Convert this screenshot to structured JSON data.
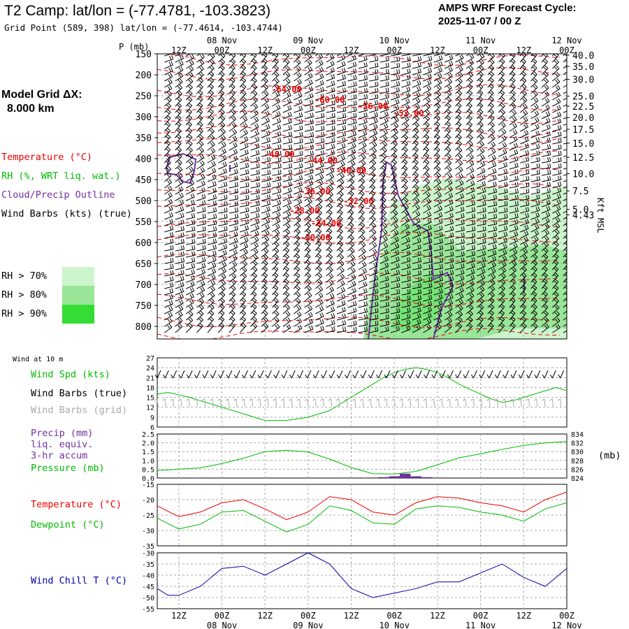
{
  "header": {
    "title": "T2 Camp:  lat/lon = (-77.4781, -103.3823)",
    "grid_point": "Grid Point (589, 398) lat/lon = (-77.4614, -103.4744)",
    "cycle_line1": "AMPS WRF Forecast Cycle:",
    "cycle_line2": "2025-11-07 / 00  Z"
  },
  "legend": {
    "model_grid_line1": "Model Grid ΔX:",
    "model_grid_line2": "8.000 km",
    "temperature": "Temperature (°C)",
    "rh": "RH (%, WRT liq. wat.)",
    "cloud": "Cloud/Precip Outline",
    "wind_barbs": "Wind Barbs (kts) (true)",
    "rh70": "RH > 70%",
    "rh80": "RH > 80%",
    "rh90": "RH > 90%",
    "wind_at_10m": "Wind at 10 m",
    "wind_spd": "Wind Spd (kts)",
    "wind_barbs_true": "Wind Barbs (true)",
    "wind_barbs_grid": "Wind Barbs (grid)",
    "precip_1": "Precip (mm)",
    "precip_2": "liq. equiv.",
    "precip_3": "3-hr accum",
    "pressure": "Pressure (mb)",
    "mb_unit": "(mb)",
    "temperature2": "Temperature (°C)",
    "dewpoint": "Dewpoint (°C)",
    "wind_chill": "Wind Chill T (°C)",
    "kft_msl": "Kft MSL",
    "p_mb": "P (mb)"
  },
  "colors": {
    "temp": "#ee0000",
    "green": "#00bb00",
    "purple": "#7030a0",
    "blue": "#0000aa",
    "rh70": "#cdf5cd",
    "rh80": "#99e699",
    "rh90": "#33dd33",
    "grid": "#aaaaaa",
    "grey_barb": "#aaaaaa"
  },
  "time_axis": {
    "top_labels": [
      "12Z",
      "00Z",
      "12Z",
      "00Z",
      "12Z",
      "00Z",
      "12Z",
      "00Z",
      "12Z",
      "00Z"
    ],
    "date_labels": [
      "08 Nov",
      "09 Nov",
      "10 Nov",
      "11 Nov",
      "12 Nov"
    ],
    "bottom_labels": [
      "12Z",
      "00Z",
      "12Z",
      "00Z",
      "12Z",
      "00Z",
      "12Z",
      "00Z",
      "12Z",
      "00Z"
    ],
    "hours_start": 6,
    "hours_end": 120
  },
  "chart_data": [
    {
      "type": "contour",
      "name": "time-height cross section",
      "y_axis_left": {
        "label": "P (mb)",
        "ticks": [
          150,
          200,
          250,
          300,
          350,
          400,
          450,
          500,
          550,
          600,
          650,
          700,
          750,
          800
        ],
        "range": [
          150,
          830
        ]
      },
      "y_axis_right": {
        "label": "Kft MSL",
        "ticks": [
          "40.0",
          "35.0",
          "30.0",
          "25.0",
          "22.5",
          "20.0",
          "17.5",
          "15.0",
          "12.5",
          "10.0",
          "7.5",
          "5.0",
          "4.43"
        ],
        "tick_pressures": [
          153,
          180,
          211,
          251,
          275,
          302,
          330,
          363,
          397,
          436,
          477,
          521,
          534
        ]
      },
      "temperature_labels": [
        {
          "text": "-64.00",
          "t": 42,
          "p": 235
        },
        {
          "text": "-60.00",
          "t": 54,
          "p": 260
        },
        {
          "text": "-56.00",
          "t": 66,
          "p": 275
        },
        {
          "text": "-52.00",
          "t": 76,
          "p": 292
        },
        {
          "text": "-48.00",
          "t": 40,
          "p": 390
        },
        {
          "text": "-44.00",
          "t": 52,
          "p": 405
        },
        {
          "text": "-40.00",
          "t": 60,
          "p": 428
        },
        {
          "text": "-36.00",
          "t": 50,
          "p": 478
        },
        {
          "text": "-32.00",
          "t": 62,
          "p": 502
        },
        {
          "text": "-28.00",
          "t": 47,
          "p": 524
        },
        {
          "text": "-24.00",
          "t": 53,
          "p": 554
        },
        {
          "text": "-20.00",
          "t": 50,
          "p": 588
        }
      ]
    },
    {
      "type": "line",
      "name": "wind speed",
      "ylabel": "Wind Spd (kts)",
      "y_ticks": [
        6,
        9,
        12,
        15,
        18,
        21,
        24,
        27
      ],
      "ylim": [
        6,
        27
      ],
      "x": [
        6,
        9,
        12,
        15,
        18,
        21,
        24,
        27,
        30,
        33,
        36,
        39,
        42,
        45,
        48,
        51,
        54,
        57,
        60,
        63,
        66,
        69,
        72,
        75,
        78,
        81,
        84,
        87,
        90,
        93,
        96,
        99,
        102,
        105,
        108,
        111,
        114,
        117,
        120
      ],
      "values": [
        16,
        16.5,
        15.8,
        15,
        14,
        13,
        12,
        11,
        10,
        9,
        8,
        8,
        8,
        8.5,
        9,
        10,
        11,
        13,
        15,
        17,
        19,
        21,
        22.5,
        23.5,
        24,
        23.5,
        22.5,
        21,
        19,
        17.5,
        16,
        14.5,
        13.5,
        14,
        15,
        16,
        17,
        18,
        17
      ]
    },
    {
      "type": "bar+line",
      "name": "precip and pressure",
      "y_ticks_left": [
        "0.0",
        "0.5",
        "1.0",
        "1.5",
        "2.0",
        "2.5"
      ],
      "ylim_left": [
        0,
        2.5
      ],
      "y_ticks_right": [
        824,
        826,
        828,
        830,
        832,
        834
      ],
      "ylim_right": [
        824,
        834
      ],
      "precip_x": [
        69,
        72,
        75,
        78,
        81
      ],
      "precip_values": [
        0.05,
        0.1,
        0.25,
        0.1,
        0.05
      ],
      "pressure_x": [
        6,
        12,
        18,
        24,
        30,
        36,
        42,
        48,
        54,
        60,
        66,
        72,
        78,
        84,
        90,
        96,
        102,
        108,
        114,
        120
      ],
      "pressure_values": [
        825.7,
        826,
        826.3,
        827.3,
        828.5,
        830,
        830.3,
        829.9,
        828.3,
        826.4,
        825,
        824.9,
        825.5,
        827,
        828.6,
        829.5,
        830.5,
        831.4,
        832,
        832.3
      ]
    },
    {
      "type": "line",
      "name": "temperature and dewpoint",
      "y_ticks": [
        -35,
        -30,
        -25,
        -20,
        -15
      ],
      "ylim": [
        -35,
        -15
      ],
      "x": [
        6,
        12,
        18,
        24,
        30,
        36,
        42,
        48,
        54,
        60,
        66,
        72,
        78,
        84,
        90,
        96,
        102,
        108,
        114,
        120
      ],
      "series": [
        {
          "name": "Temperature",
          "values": [
            -22,
            -25.5,
            -24,
            -21,
            -20,
            -23,
            -26.5,
            -24,
            -19,
            -20,
            -24,
            -25,
            -21,
            -19,
            -19.5,
            -21,
            -22,
            -24,
            -20,
            -17.5
          ]
        },
        {
          "name": "Dewpoint",
          "values": [
            -26,
            -29.5,
            -28,
            -24,
            -23.5,
            -27,
            -30.5,
            -28,
            -22,
            -23.5,
            -27.5,
            -28,
            -23,
            -22,
            -22.5,
            -24,
            -25,
            -27,
            -23,
            -21
          ]
        }
      ]
    },
    {
      "type": "line",
      "name": "wind chill",
      "y_ticks": [
        -55,
        -50,
        -45,
        -40,
        -35,
        -30
      ],
      "ylim": [
        -55,
        -30
      ],
      "x": [
        6,
        9,
        12,
        18,
        24,
        30,
        36,
        42,
        48,
        54,
        60,
        66,
        72,
        78,
        84,
        90,
        96,
        102,
        108,
        114,
        120
      ],
      "values": [
        -46,
        -49,
        -49,
        -45,
        -37,
        -36,
        -40,
        -35,
        -30,
        -35,
        -46,
        -50,
        -48,
        -46,
        -43,
        -43,
        -39,
        -35,
        -41,
        -45,
        -37
      ]
    }
  ]
}
